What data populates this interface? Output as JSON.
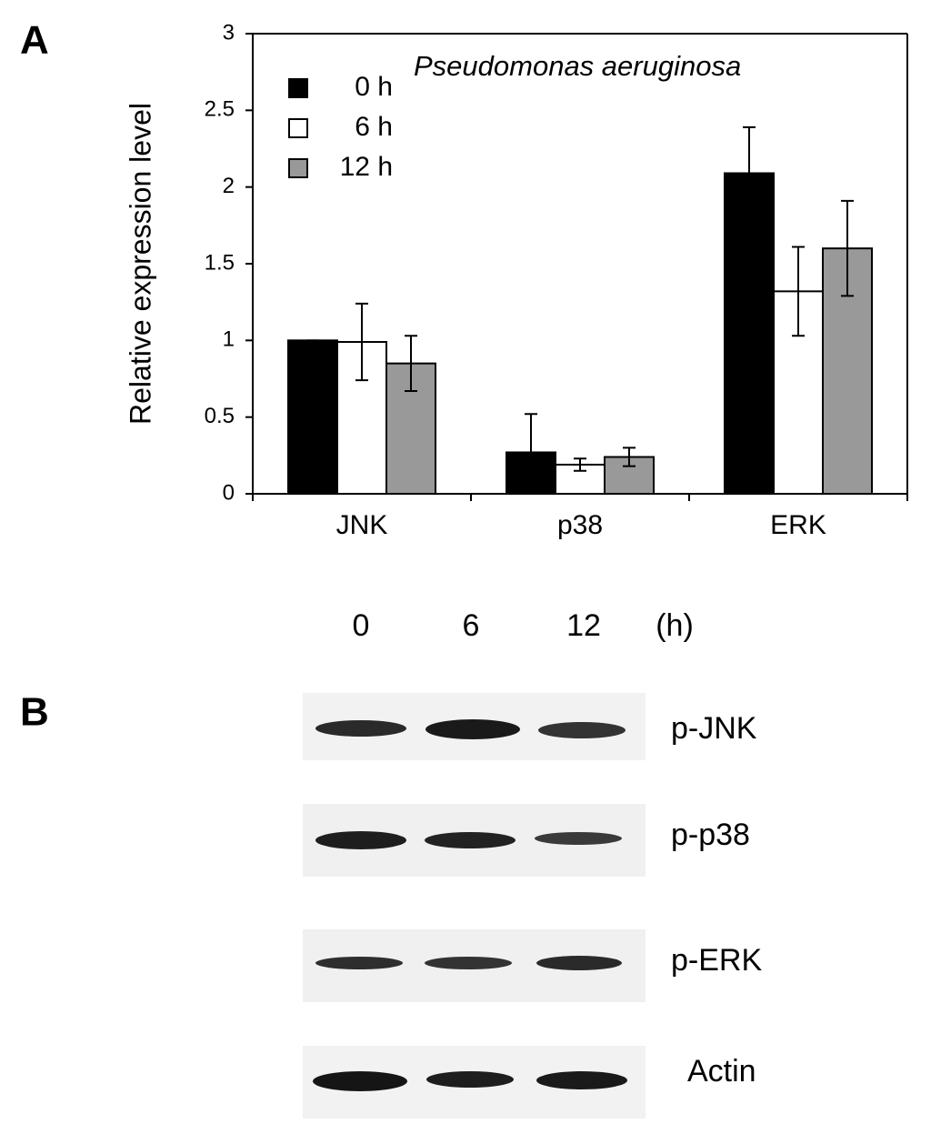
{
  "chart_data": {
    "type": "bar",
    "annotation": "Pseudomonas aeruginosa",
    "y_label": "Relative expression level",
    "categories": [
      "JNK",
      "p38",
      "ERK"
    ],
    "series": [
      {
        "name": "0 h",
        "color": "#000000",
        "values": [
          1.0,
          0.27,
          2.09
        ],
        "errors": [
          0.0,
          0.25,
          0.3
        ]
      },
      {
        "name": "6 h",
        "color": "#ffffff",
        "values": [
          0.99,
          0.19,
          1.32
        ],
        "errors": [
          0.25,
          0.04,
          0.29
        ]
      },
      {
        "name": "12 h",
        "color": "#999999",
        "values": [
          0.85,
          0.24,
          1.6
        ],
        "errors": [
          0.18,
          0.06,
          0.31
        ]
      }
    ],
    "ylim": [
      0,
      3
    ],
    "yticks": [
      0,
      0.5,
      1,
      1.5,
      2,
      2.5,
      3
    ],
    "grid": false,
    "legend": "upper left"
  },
  "panels": [
    "A",
    "B"
  ],
  "blot": {
    "lanes": [
      "0",
      "6",
      "12"
    ],
    "unit": "(h)",
    "rows": [
      "p-JNK",
      "p-p38",
      "p-ERK",
      "Actin"
    ]
  }
}
